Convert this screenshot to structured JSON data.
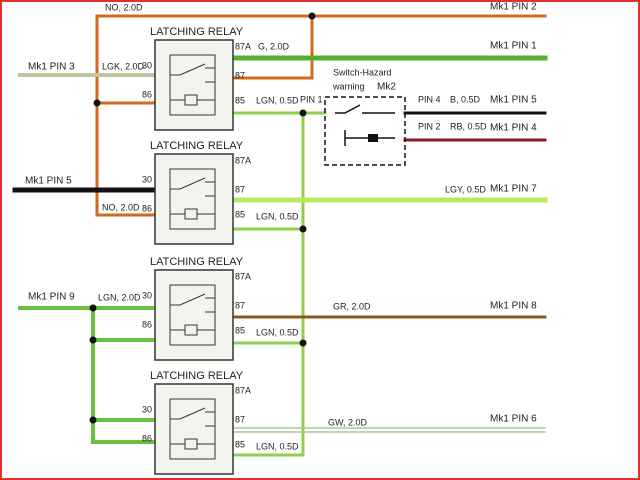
{
  "relays": [
    {
      "title": "LATCHING RELAY",
      "pins": [
        "87A",
        "30",
        "87",
        "86",
        "85"
      ]
    },
    {
      "title": "LATCHING RELAY",
      "pins": [
        "87A",
        "30",
        "87",
        "86",
        "85"
      ]
    },
    {
      "title": "LATCHING RELAY",
      "pins": [
        "87A",
        "30",
        "87",
        "86",
        "85"
      ]
    },
    {
      "title": "LATCHING RELAY",
      "pins": [
        "87A",
        "30",
        "87",
        "86",
        "85"
      ]
    }
  ],
  "switch": {
    "title": "Switch-Hazard",
    "subtitle": "warning",
    "connector": "Mk2"
  },
  "labels": [
    "NO, 2.0D",
    "Mk1 PIN 2",
    "G, 2.0D",
    "Mk1 PIN 1",
    "Mk1 PIN 3",
    "LGK, 2.0D",
    "LGN, 0.5D",
    "PIN 1",
    "PIN 4",
    "B, 0.5D",
    "Mk1 PIN 5",
    "PIN 2",
    "RB, 0.5D",
    "Mk1 PIN 4",
    "Mk1 PIN 5",
    "LGY, 0.5D",
    "Mk1 PIN 7",
    "NO, 2.0D",
    "LGN, 0.5D",
    "Mk1 PIN 9",
    "LGN, 2.0D",
    "GR, 2.0D",
    "Mk1 PIN 8",
    "LGN, 0.5D",
    "GW, 2.0D",
    "Mk1 PIN 6",
    "LGN, 0.5D"
  ]
}
